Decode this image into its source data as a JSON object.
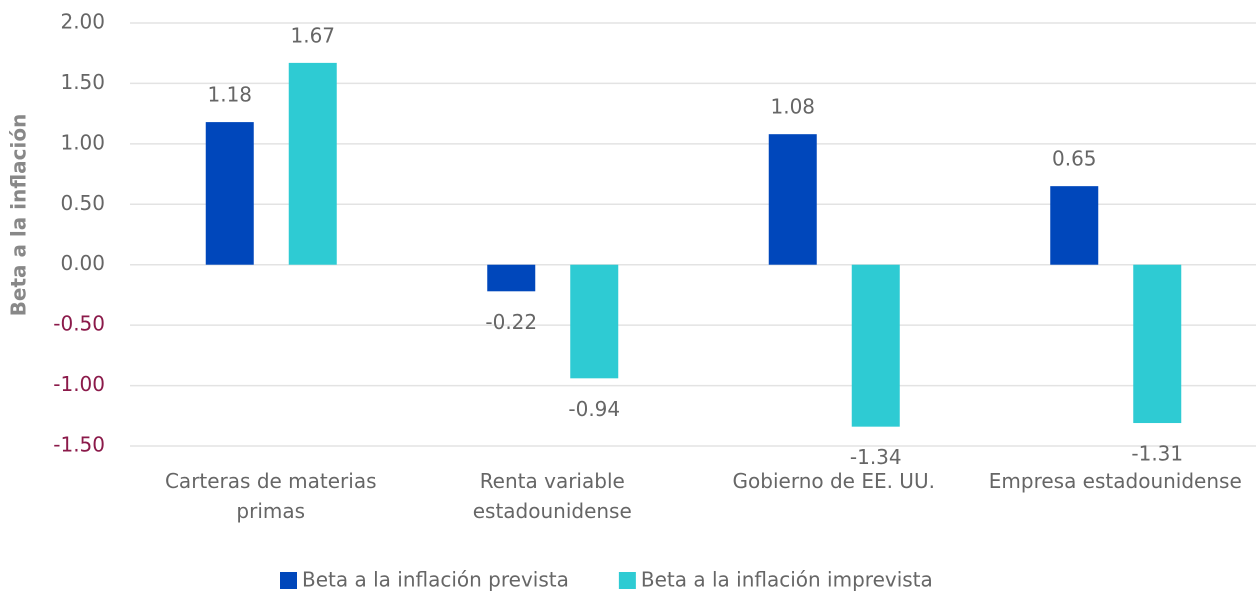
{
  "chart_data": {
    "type": "bar",
    "y_label": "Beta a la inflación",
    "categories": [
      "Carteras de materias primas",
      "Renta variable estadounidense",
      "Gobierno de EE. UU.",
      "Empresa estadounidense"
    ],
    "series": [
      {
        "name": "Beta a la inflación prevista",
        "color": "#0047bb",
        "values": [
          1.18,
          -0.22,
          1.08,
          0.65
        ]
      },
      {
        "name": "Beta a la inflación imprevista",
        "color": "#2ecbd3",
        "values": [
          1.67,
          -0.94,
          -1.34,
          -1.31
        ]
      }
    ],
    "ylim": [
      -1.5,
      2
    ],
    "yticks": [
      {
        "value": 2,
        "label": "2.00"
      },
      {
        "value": 1.5,
        "label": "1.50"
      },
      {
        "value": 1,
        "label": "1.00"
      },
      {
        "value": 0.5,
        "label": "0.50"
      },
      {
        "value": 0,
        "label": "0.00"
      },
      {
        "value": -0.5,
        "label": "-0.50"
      },
      {
        "value": -1,
        "label": "-1.00"
      },
      {
        "value": -1.5,
        "label": "-1.50"
      }
    ],
    "negative_tick_color": "#8b1a4a",
    "grid": true,
    "legend": "bottom"
  }
}
